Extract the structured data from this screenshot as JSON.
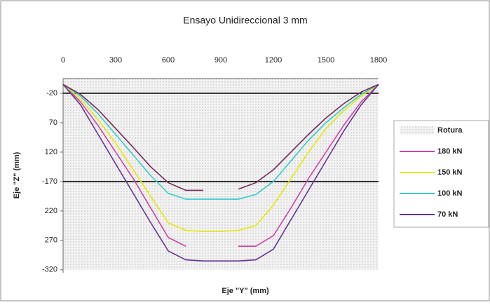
{
  "chart_data": {
    "type": "line",
    "title": "Ensayo Unidireccional 3 mm",
    "x_label": "Eje \"Y\" (mm)",
    "y_label": "Eje \"Z\" (mm)",
    "x": [
      0,
      100,
      200,
      300,
      400,
      500,
      600,
      700,
      800,
      900,
      1000,
      1100,
      1200,
      1300,
      1400,
      1500,
      1600,
      1700,
      1800
    ],
    "xlim": [
      0,
      1800
    ],
    "xticks": [
      0,
      300,
      600,
      900,
      1200,
      1500,
      1800
    ],
    "ylim": [
      -325,
      5
    ],
    "yticks": [
      {
        "value": -20,
        "label": "-20"
      },
      {
        "value": -70,
        "label": "70"
      },
      {
        "value": -120,
        "label": "120"
      },
      {
        "value": -170,
        "label": "-170"
      },
      {
        "value": -220,
        "label": "220"
      },
      {
        "value": -270,
        "label": "270"
      },
      {
        "value": -320,
        "label": "-320"
      }
    ],
    "reference_lines": [
      -20,
      -170
    ],
    "legend": "right",
    "series": [
      {
        "name": "Rotura",
        "color": "#d4d4d4",
        "style": "area",
        "values": [
          -320,
          -320,
          -320,
          -320,
          -320,
          -320,
          -320,
          -320,
          -320,
          -320,
          -320,
          -320,
          -320,
          -320,
          -320,
          -320,
          -320,
          -320,
          -320
        ]
      },
      {
        "name": "180 kN",
        "color": "#cc44aa",
        "values": [
          -5,
          -35,
          -75,
          -120,
          -165,
          -215,
          -265,
          -280,
          null,
          null,
          -280,
          -280,
          -262,
          -215,
          -165,
          -120,
          -75,
          -35,
          -5
        ]
      },
      {
        "name": "150 kN",
        "color": "#e8e800",
        "values": [
          -5,
          -30,
          -65,
          -105,
          -150,
          -195,
          -240,
          -253,
          -255,
          -255,
          -253,
          -245,
          -210,
          -165,
          -120,
          -80,
          -50,
          -25,
          -5
        ]
      },
      {
        "name": "100 kN",
        "color": "#33cccc",
        "values": [
          -5,
          -25,
          -55,
          -90,
          -125,
          -160,
          -190,
          -200,
          -200,
          -200,
          -200,
          -192,
          -170,
          -135,
          -100,
          -70,
          -45,
          -22,
          -5
        ]
      },
      {
        "name": "70 kN",
        "color": "#663399",
        "values": [
          -5,
          -40,
          -90,
          -140,
          -190,
          -240,
          -288,
          -303,
          -305,
          -305,
          -305,
          -303,
          -285,
          -235,
          -185,
          -135,
          -85,
          -40,
          -5
        ]
      },
      {
        "color": "#7a2a5a",
        "values": [
          -5,
          -22,
          -48,
          -80,
          -112,
          -145,
          -172,
          -185,
          -185,
          null,
          -183,
          -172,
          -150,
          -120,
          -90,
          -62,
          -38,
          -18,
          -5
        ]
      }
    ]
  }
}
